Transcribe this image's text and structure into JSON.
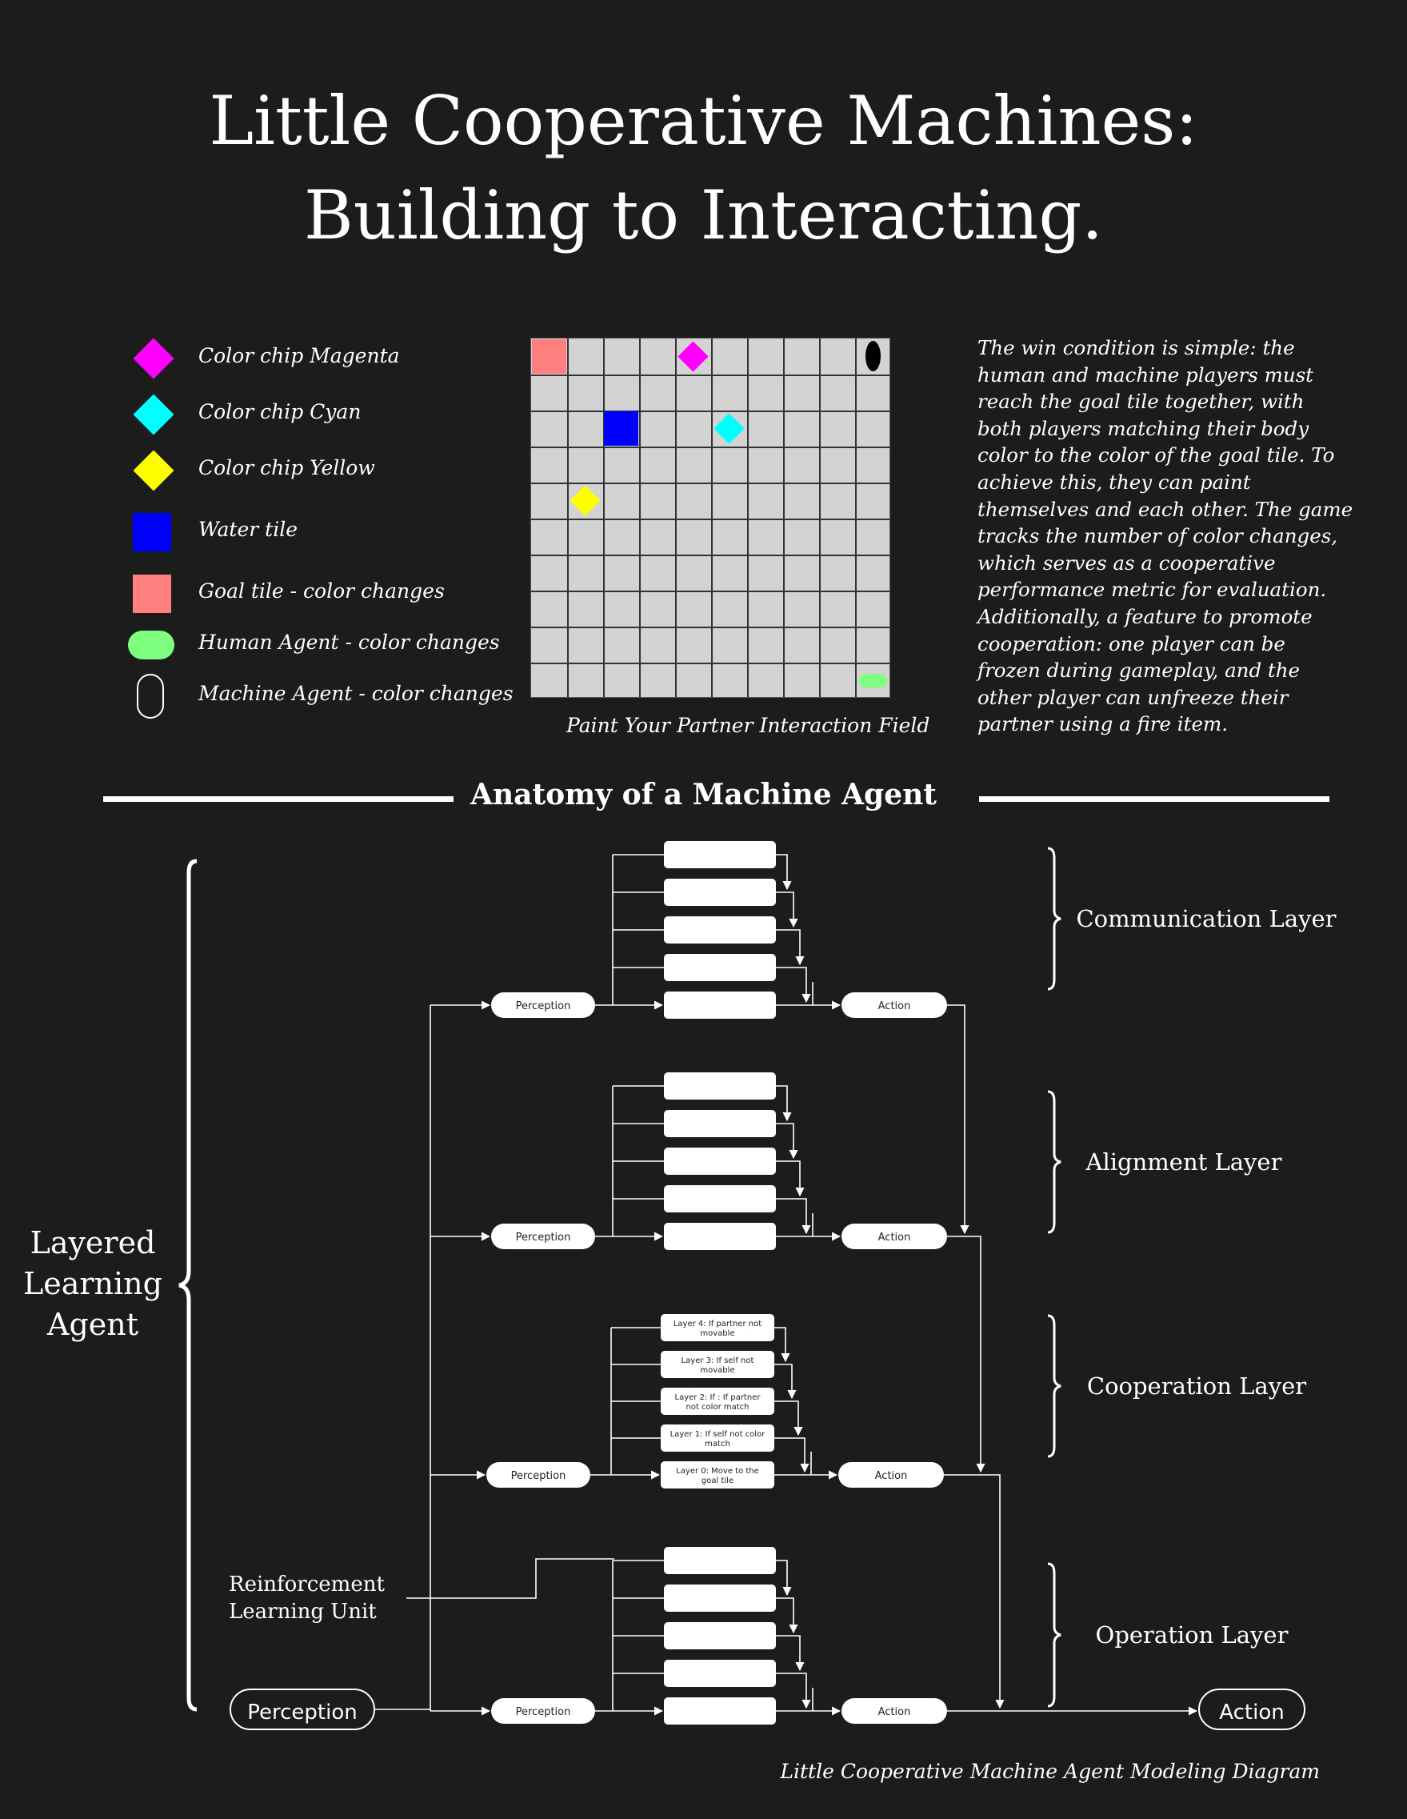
{
  "title": {
    "line1": "Little Cooperative Machines:",
    "line2": "Building to Interacting."
  },
  "legend": [
    {
      "label": "Color chip Magenta",
      "icon": "magenta-diamond-icon",
      "color": "#ff00ff"
    },
    {
      "label": "Color chip Cyan",
      "icon": "cyan-diamond-icon",
      "color": "#00ffff"
    },
    {
      "label": "Color chip Yellow",
      "icon": "yellow-diamond-icon",
      "color": "#ffff00"
    },
    {
      "label": "Water tile",
      "icon": "water-tile-icon",
      "color": "#0000ff"
    },
    {
      "label": "Goal tile - color changes",
      "icon": "goal-tile-icon",
      "color": "#ff7f7f"
    },
    {
      "label": "Human Agent - color changes",
      "icon": "human-agent-icon",
      "color": "#7fff7f"
    },
    {
      "label": "Machine Agent - color changes",
      "icon": "machine-agent-icon",
      "color": "#1c1c1c"
    }
  ],
  "field": {
    "caption": "Paint Your Partner Interaction Field"
  },
  "description": "The win condition is simple: the human and machine players must reach the goal tile together, with both players matching their body color to the color of the goal tile. To achieve this, they can paint themselves and each other. The game tracks the number of color changes, which serves as a cooperative performance metric for evaluation. Additionally, a feature to promote cooperation: one player can be frozen during gameplay, and the other player can unfreeze their partner using a fire item.",
  "anatomy": {
    "title": "Anatomy of a Machine Agent",
    "agent_label_lines": [
      "Layered",
      "Learning",
      "Agent"
    ],
    "rl_unit_lines": [
      "Reinforcement",
      "Learning Unit"
    ],
    "main_perception": "Perception",
    "main_action": "Action",
    "layers": [
      {
        "name": "Communication Layer",
        "perception": "Perception",
        "action": "Action"
      },
      {
        "name": "Alignment Layer",
        "perception": "Perception",
        "action": "Action"
      },
      {
        "name": "Cooperation Layer",
        "perception": "Perception",
        "action": "Action",
        "boxes": [
          [
            "Layer 4: If partner not",
            "movable"
          ],
          [
            "Layer 3: If self not",
            "movable"
          ],
          [
            "Layer 2: If : If partner",
            "not color match"
          ],
          [
            "Layer 1: If self not color",
            "match"
          ],
          [
            "Layer 0: Move to the",
            "goal tile"
          ]
        ]
      },
      {
        "name": "Operation Layer",
        "perception": "Perception",
        "action": "Action"
      }
    ],
    "caption": "Little Cooperative Machine Agent Modeling Diagram"
  }
}
